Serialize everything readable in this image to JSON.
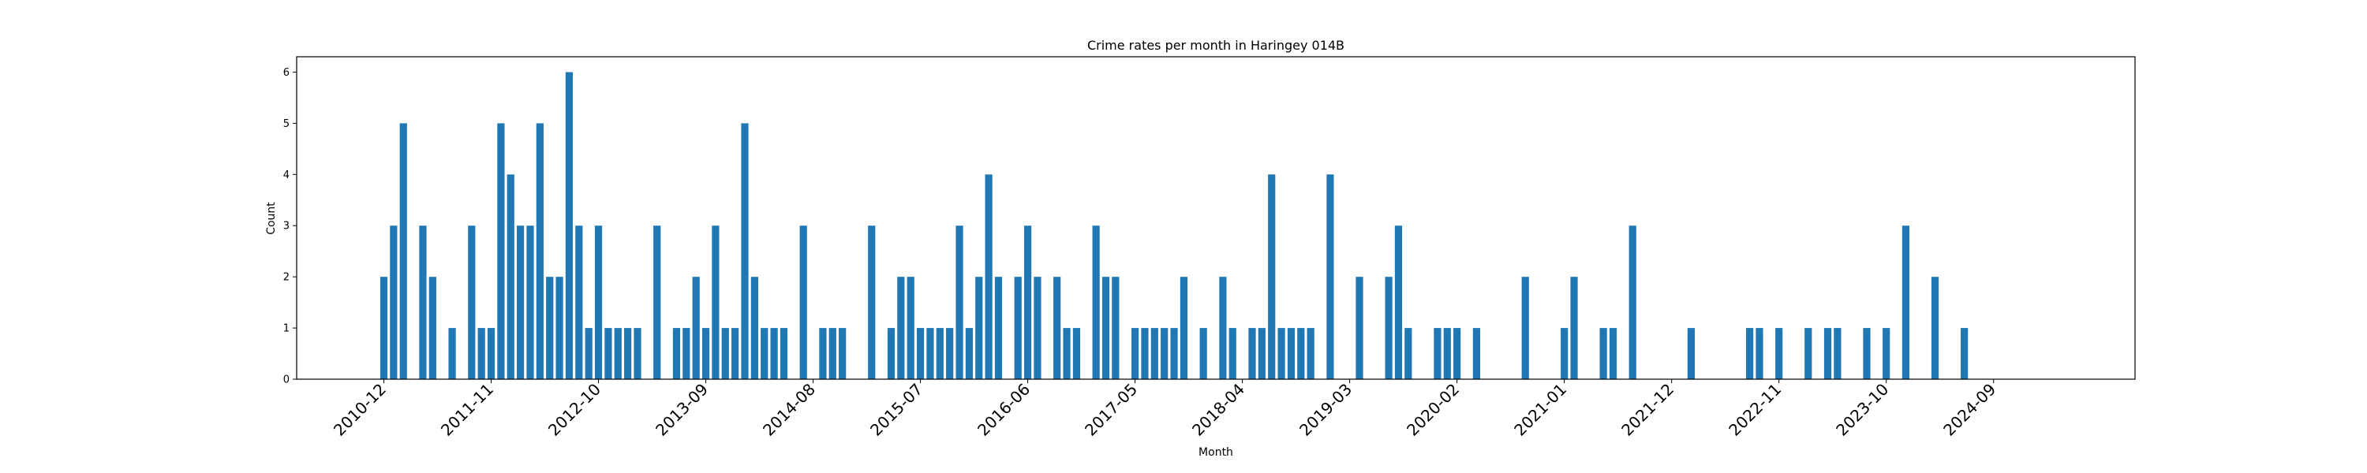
{
  "chart_data": {
    "type": "bar",
    "title": "Crime rates per month in Haringey 014B",
    "xlabel": "Month",
    "ylabel": "Count",
    "ylim": [
      0,
      6.3
    ],
    "yticks": [
      0,
      1,
      2,
      3,
      4,
      5,
      6
    ],
    "xtick_labels": [
      "2010-12",
      "2011-11",
      "2012-10",
      "2013-09",
      "2014-08",
      "2015-07",
      "2016-06",
      "2017-05",
      "2018-04",
      "2019-03",
      "2020-02",
      "2021-01",
      "2021-12",
      "2022-11",
      "2023-10",
      "2024-09"
    ],
    "bar_color": "#1f77b4",
    "grid": false,
    "legend": "none",
    "data": [
      {
        "x": "2010-12",
        "y": 2
      },
      {
        "x": "2011-01",
        "y": 3
      },
      {
        "x": "2011-02",
        "y": 5
      },
      {
        "x": "2011-04",
        "y": 3
      },
      {
        "x": "2011-05",
        "y": 2
      },
      {
        "x": "2011-07",
        "y": 1
      },
      {
        "x": "2011-09",
        "y": 3
      },
      {
        "x": "2011-10",
        "y": 1
      },
      {
        "x": "2011-11",
        "y": 1
      },
      {
        "x": "2011-12",
        "y": 5
      },
      {
        "x": "2012-01",
        "y": 4
      },
      {
        "x": "2012-02",
        "y": 3
      },
      {
        "x": "2012-03",
        "y": 3
      },
      {
        "x": "2012-04",
        "y": 5
      },
      {
        "x": "2012-05",
        "y": 2
      },
      {
        "x": "2012-06",
        "y": 2
      },
      {
        "x": "2012-07",
        "y": 6
      },
      {
        "x": "2012-08",
        "y": 3
      },
      {
        "x": "2012-09",
        "y": 1
      },
      {
        "x": "2012-10",
        "y": 3
      },
      {
        "x": "2012-11",
        "y": 1
      },
      {
        "x": "2012-12",
        "y": 1
      },
      {
        "x": "2013-01",
        "y": 1
      },
      {
        "x": "2013-02",
        "y": 1
      },
      {
        "x": "2013-04",
        "y": 3
      },
      {
        "x": "2013-06",
        "y": 1
      },
      {
        "x": "2013-07",
        "y": 1
      },
      {
        "x": "2013-08",
        "y": 2
      },
      {
        "x": "2013-09",
        "y": 1
      },
      {
        "x": "2013-10",
        "y": 3
      },
      {
        "x": "2013-11",
        "y": 1
      },
      {
        "x": "2013-12",
        "y": 1
      },
      {
        "x": "2014-01",
        "y": 5
      },
      {
        "x": "2014-02",
        "y": 2
      },
      {
        "x": "2014-03",
        "y": 1
      },
      {
        "x": "2014-04",
        "y": 1
      },
      {
        "x": "2014-05",
        "y": 1
      },
      {
        "x": "2014-07",
        "y": 3
      },
      {
        "x": "2014-09",
        "y": 1
      },
      {
        "x": "2014-10",
        "y": 1
      },
      {
        "x": "2014-11",
        "y": 1
      },
      {
        "x": "2015-02",
        "y": 3
      },
      {
        "x": "2015-04",
        "y": 1
      },
      {
        "x": "2015-05",
        "y": 2
      },
      {
        "x": "2015-06",
        "y": 2
      },
      {
        "x": "2015-07",
        "y": 1
      },
      {
        "x": "2015-08",
        "y": 1
      },
      {
        "x": "2015-09",
        "y": 1
      },
      {
        "x": "2015-10",
        "y": 1
      },
      {
        "x": "2015-11",
        "y": 3
      },
      {
        "x": "2015-12",
        "y": 1
      },
      {
        "x": "2016-01",
        "y": 2
      },
      {
        "x": "2016-02",
        "y": 4
      },
      {
        "x": "2016-03",
        "y": 2
      },
      {
        "x": "2016-05",
        "y": 2
      },
      {
        "x": "2016-06",
        "y": 3
      },
      {
        "x": "2016-07",
        "y": 2
      },
      {
        "x": "2016-09",
        "y": 2
      },
      {
        "x": "2016-10",
        "y": 1
      },
      {
        "x": "2016-11",
        "y": 1
      },
      {
        "x": "2017-01",
        "y": 3
      },
      {
        "x": "2017-02",
        "y": 2
      },
      {
        "x": "2017-03",
        "y": 2
      },
      {
        "x": "2017-05",
        "y": 1
      },
      {
        "x": "2017-06",
        "y": 1
      },
      {
        "x": "2017-07",
        "y": 1
      },
      {
        "x": "2017-08",
        "y": 1
      },
      {
        "x": "2017-09",
        "y": 1
      },
      {
        "x": "2017-10",
        "y": 2
      },
      {
        "x": "2017-12",
        "y": 1
      },
      {
        "x": "2018-02",
        "y": 2
      },
      {
        "x": "2018-03",
        "y": 1
      },
      {
        "x": "2018-05",
        "y": 1
      },
      {
        "x": "2018-06",
        "y": 1
      },
      {
        "x": "2018-07",
        "y": 4
      },
      {
        "x": "2018-08",
        "y": 1
      },
      {
        "x": "2018-09",
        "y": 1
      },
      {
        "x": "2018-10",
        "y": 1
      },
      {
        "x": "2018-11",
        "y": 1
      },
      {
        "x": "2019-01",
        "y": 4
      },
      {
        "x": "2019-04",
        "y": 2
      },
      {
        "x": "2019-07",
        "y": 2
      },
      {
        "x": "2019-08",
        "y": 3
      },
      {
        "x": "2019-09",
        "y": 1
      },
      {
        "x": "2019-12",
        "y": 1
      },
      {
        "x": "2020-01",
        "y": 1
      },
      {
        "x": "2020-02",
        "y": 1
      },
      {
        "x": "2020-04",
        "y": 1
      },
      {
        "x": "2020-09",
        "y": 2
      },
      {
        "x": "2021-01",
        "y": 1
      },
      {
        "x": "2021-02",
        "y": 2
      },
      {
        "x": "2021-05",
        "y": 1
      },
      {
        "x": "2021-06",
        "y": 1
      },
      {
        "x": "2021-08",
        "y": 3
      },
      {
        "x": "2022-02",
        "y": 1
      },
      {
        "x": "2022-08",
        "y": 1
      },
      {
        "x": "2022-09",
        "y": 1
      },
      {
        "x": "2022-11",
        "y": 1
      },
      {
        "x": "2023-02",
        "y": 1
      },
      {
        "x": "2023-04",
        "y": 1
      },
      {
        "x": "2023-05",
        "y": 1
      },
      {
        "x": "2023-08",
        "y": 1
      },
      {
        "x": "2023-10",
        "y": 1
      },
      {
        "x": "2023-12",
        "y": 3
      },
      {
        "x": "2024-03",
        "y": 2
      },
      {
        "x": "2024-06",
        "y": 1
      }
    ]
  }
}
